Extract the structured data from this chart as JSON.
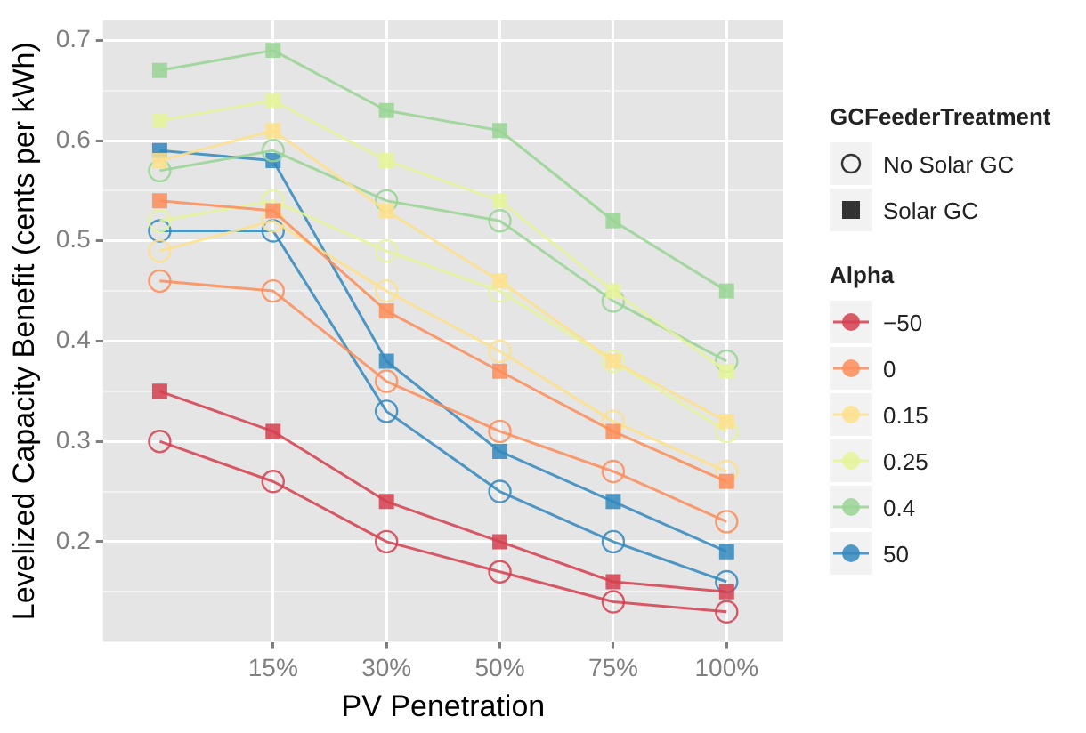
{
  "chart_data": {
    "type": "line",
    "xlabel": "PV Penetration",
    "ylabel": "Levelized Capacity Benefit (cents per kWh)",
    "legend_title": "Alpha",
    "legend": "right",
    "grid": true,
    "categories": [
      null,
      "15%",
      "30%",
      "50%",
      "75%",
      "100%"
    ],
    "ylim": [
      0.1,
      0.72
    ],
    "yticks": [
      {
        "value": 0.15,
        "label": null
      },
      0.2,
      {
        "value": 0.25,
        "label": null
      },
      0.3,
      {
        "value": 0.35,
        "label": null
      },
      0.4,
      {
        "value": 0.45,
        "label": null
      },
      0.5,
      {
        "value": 0.55,
        "label": null
      },
      0.6,
      {
        "value": 0.65,
        "label": null
      },
      0.7
    ],
    "annotations": [
      "GCFeederTreatment",
      "No Solar GC",
      "Solar GC"
    ],
    "series": [
      {
        "name": "−50",
        "color": "#d53e4f",
        "marker": "circle",
        "values": [
          0.3,
          0.26,
          0.2,
          0.17,
          0.14,
          0.13
        ]
      },
      {
        "color": "#d53e4f",
        "marker": "square",
        "values": [
          0.35,
          0.31,
          0.24,
          0.2,
          0.16,
          0.15
        ]
      },
      {
        "name": "0",
        "color": "#fc8d59",
        "marker": "circle",
        "values": [
          0.46,
          0.45,
          0.36,
          0.31,
          0.27,
          0.22
        ]
      },
      {
        "color": "#fc8d59",
        "marker": "square",
        "values": [
          0.54,
          0.53,
          0.43,
          0.37,
          0.31,
          0.26
        ]
      },
      {
        "name": "0.15",
        "color": "#fee08b",
        "marker": "circle",
        "values": [
          0.49,
          0.52,
          0.45,
          0.39,
          0.32,
          0.27
        ]
      },
      {
        "color": "#fee08b",
        "marker": "square",
        "values": [
          0.58,
          0.61,
          0.53,
          0.46,
          0.38,
          0.32
        ]
      },
      {
        "name": "0.25",
        "color": "#e6f598",
        "marker": "circle",
        "values": [
          0.52,
          0.54,
          0.49,
          0.45,
          0.38,
          0.31
        ]
      },
      {
        "color": "#e6f598",
        "marker": "square",
        "values": [
          0.62,
          0.64,
          0.58,
          0.54,
          0.45,
          0.37
        ]
      },
      {
        "name": "0.4",
        "color": "#99d594",
        "marker": "circle",
        "values": [
          0.57,
          0.59,
          0.54,
          0.52,
          0.44,
          0.38
        ]
      },
      {
        "color": "#99d594",
        "marker": "square",
        "values": [
          0.67,
          0.69,
          0.63,
          0.61,
          0.52,
          0.45
        ]
      },
      {
        "name": "50",
        "color": "#3288bd",
        "marker": "circle",
        "values": [
          0.51,
          0.51,
          0.33,
          0.25,
          0.2,
          0.16
        ]
      },
      {
        "color": "#3288bd",
        "marker": "square",
        "values": [
          0.59,
          0.58,
          0.38,
          0.29,
          0.24,
          0.19
        ]
      }
    ]
  }
}
